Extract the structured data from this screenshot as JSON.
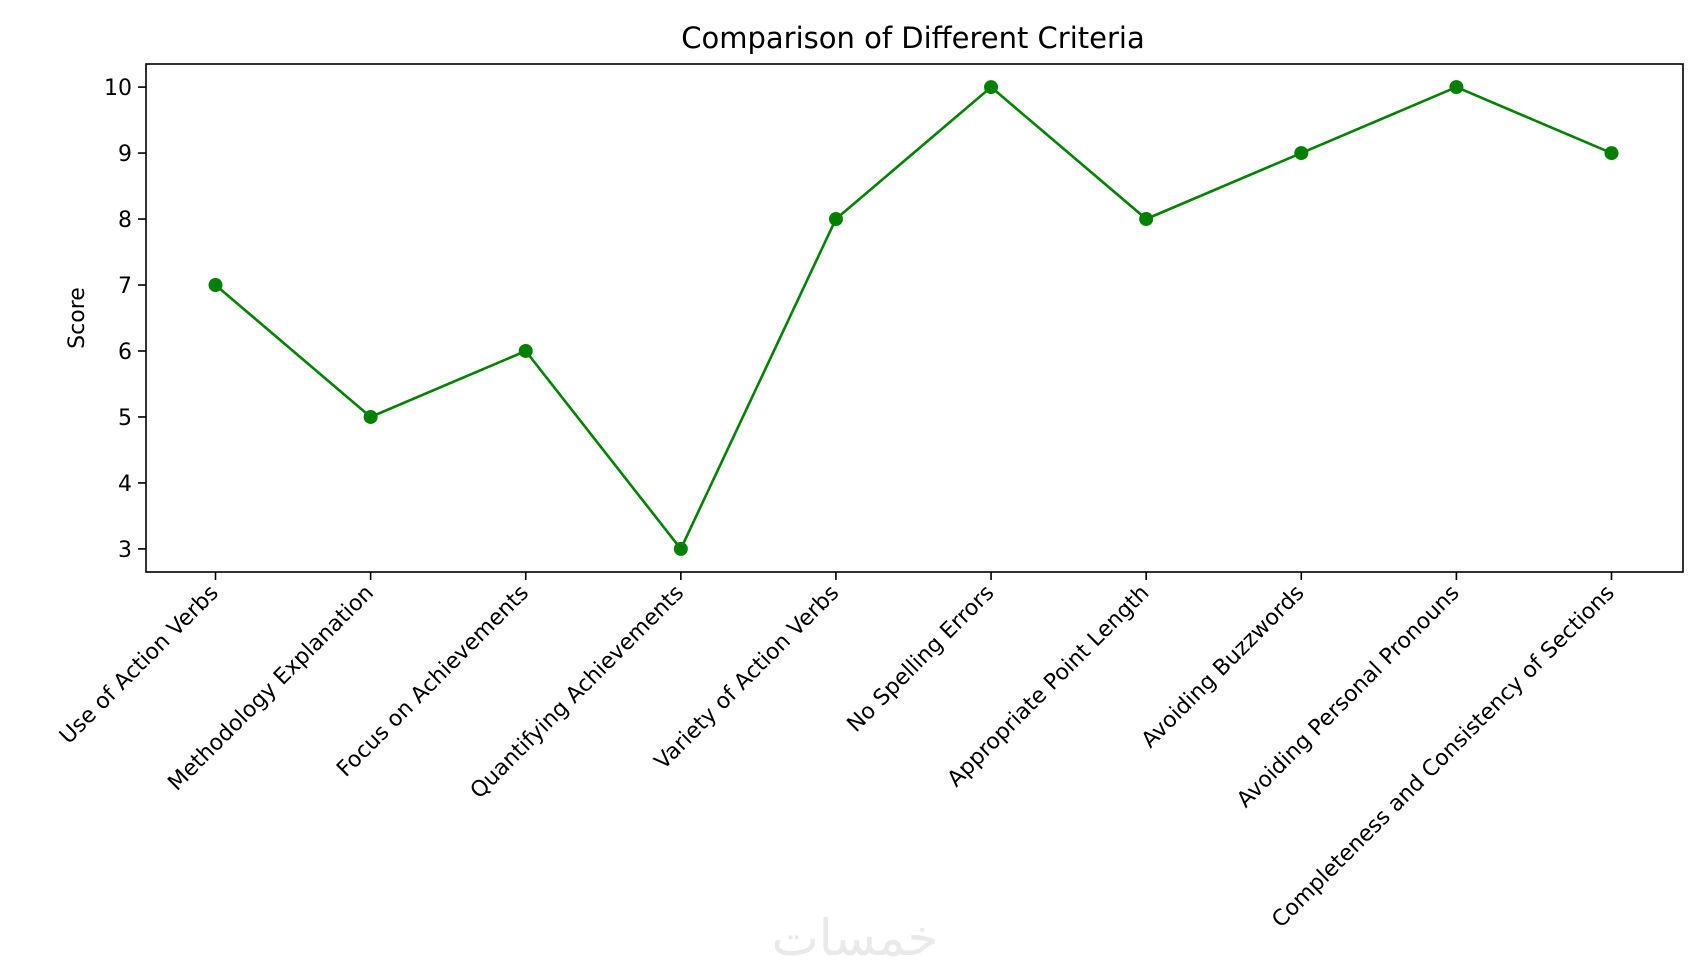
{
  "chart_data": {
    "type": "line",
    "title": "Comparison of Different Criteria",
    "xlabel": "",
    "ylabel": "Score",
    "categories": [
      "Use of Action Verbs",
      "Methodology Explanation",
      "Focus on Achievements",
      "Quantifying Achievements",
      "Variety of Action Verbs",
      "No Spelling Errors",
      "Appropriate Point Length",
      "Avoiding Buzzwords",
      "Avoiding Personal Pronouns",
      "Completeness and Consistency of Sections"
    ],
    "series": [
      {
        "values": [
          7,
          5,
          6,
          3,
          8,
          10,
          8,
          9,
          10,
          9
        ],
        "color": "#008000",
        "marker": "circle"
      }
    ],
    "ylim": [
      2.65,
      10.35
    ],
    "yticks": [
      3,
      4,
      5,
      6,
      7,
      8,
      9,
      10
    ],
    "xtick_rotation": -45,
    "grid": false,
    "legend": "none"
  },
  "watermark": {
    "text": "خمسات"
  }
}
